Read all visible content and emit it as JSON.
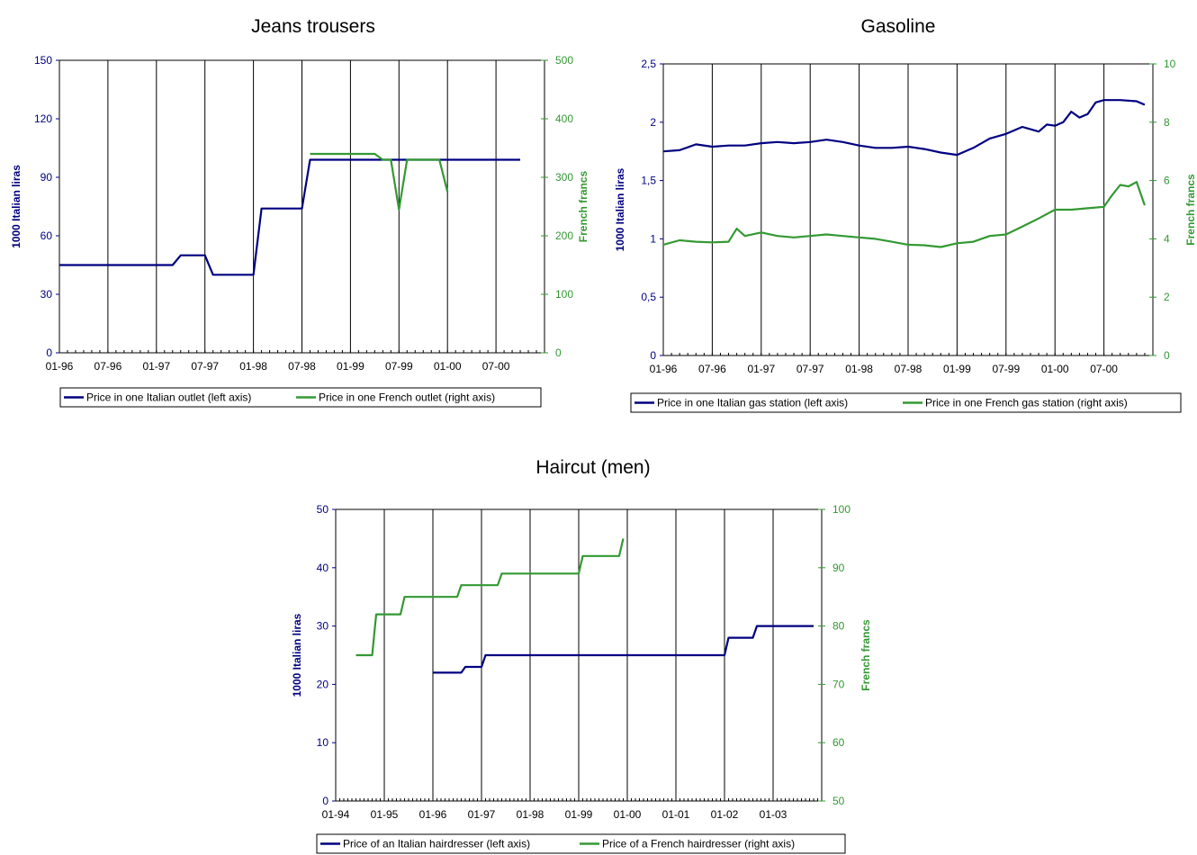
{
  "colors": {
    "italy": "#000080",
    "france": "#339933",
    "grid": "#000000"
  },
  "chart_data": [
    {
      "type": "line",
      "title": "Jeans trousers",
      "ylabel": "1000 Italian liras",
      "y2label": "French francs",
      "ylim": [
        0,
        150
      ],
      "y2lim": [
        0,
        500
      ],
      "yticks": [
        "0",
        "30",
        "60",
        "90",
        "120",
        "150"
      ],
      "y2ticks": [
        "0",
        "100",
        "200",
        "300",
        "400",
        "500"
      ],
      "xlim": [
        0,
        60
      ],
      "xticks": [
        "01-96",
        "07-96",
        "01-97",
        "07-97",
        "01-98",
        "07-98",
        "01-99",
        "07-99",
        "01-00",
        "07-00"
      ],
      "grid": true,
      "legend_position": "bottom",
      "series": [
        {
          "name": "Price in one Italian outlet (left axis)",
          "axis": "left",
          "color": "italy",
          "points": [
            [
              0,
              45
            ],
            [
              14,
              45
            ],
            [
              15,
              50
            ],
            [
              18,
              50
            ],
            [
              19,
              40
            ],
            [
              24,
              40
            ],
            [
              25,
              74
            ],
            [
              30,
              74
            ],
            [
              31,
              99
            ],
            [
              57,
              99
            ]
          ]
        },
        {
          "name": "Price in one French outlet (right axis)",
          "axis": "right",
          "color": "france",
          "points": [
            [
              31,
              340
            ],
            [
              39,
              340
            ],
            [
              40,
              330
            ],
            [
              41,
              330
            ],
            [
              42,
              245
            ],
            [
              43,
              330
            ],
            [
              47,
              330
            ],
            [
              48,
              275
            ]
          ]
        }
      ]
    },
    {
      "type": "line",
      "title": "Gasoline",
      "ylabel": "1000 Italian liras",
      "y2label": "French francs",
      "ylim": [
        0,
        2.5
      ],
      "y2lim": [
        0,
        10
      ],
      "yticks": [
        "0",
        "0,5",
        "1",
        "1,5",
        "2",
        "2,5"
      ],
      "y2ticks": [
        "0",
        "2",
        "4",
        "6",
        "8",
        "10"
      ],
      "xlim": [
        0,
        60
      ],
      "xticks": [
        "01-96",
        "07-96",
        "01-97",
        "07-97",
        "01-98",
        "07-98",
        "01-99",
        "07-99",
        "01-00",
        "07-00"
      ],
      "grid": true,
      "legend_position": "bottom",
      "series": [
        {
          "name": "Price in one Italian gas station (left axis)",
          "axis": "left",
          "color": "italy",
          "points": [
            [
              0,
              1.75
            ],
            [
              2,
              1.76
            ],
            [
              4,
              1.81
            ],
            [
              6,
              1.79
            ],
            [
              8,
              1.8
            ],
            [
              10,
              1.8
            ],
            [
              12,
              1.82
            ],
            [
              14,
              1.83
            ],
            [
              16,
              1.82
            ],
            [
              18,
              1.83
            ],
            [
              20,
              1.85
            ],
            [
              22,
              1.83
            ],
            [
              24,
              1.8
            ],
            [
              26,
              1.78
            ],
            [
              28,
              1.78
            ],
            [
              30,
              1.79
            ],
            [
              32,
              1.77
            ],
            [
              34,
              1.74
            ],
            [
              36,
              1.72
            ],
            [
              38,
              1.78
            ],
            [
              40,
              1.86
            ],
            [
              42,
              1.9
            ],
            [
              44,
              1.96
            ],
            [
              46,
              1.92
            ],
            [
              47,
              1.98
            ],
            [
              48,
              1.97
            ],
            [
              49,
              2.0
            ],
            [
              50,
              2.09
            ],
            [
              51,
              2.04
            ],
            [
              52,
              2.07
            ],
            [
              53,
              2.17
            ],
            [
              54,
              2.19
            ],
            [
              56,
              2.19
            ],
            [
              58,
              2.18
            ],
            [
              59,
              2.15
            ]
          ]
        },
        {
          "name": "Price in one French  gas station (right axis)",
          "axis": "right",
          "color": "france",
          "points": [
            [
              0,
              3.8
            ],
            [
              2,
              3.95
            ],
            [
              4,
              3.9
            ],
            [
              6,
              3.88
            ],
            [
              8,
              3.9
            ],
            [
              9,
              4.35
            ],
            [
              10,
              4.1
            ],
            [
              12,
              4.22
            ],
            [
              14,
              4.1
            ],
            [
              16,
              4.05
            ],
            [
              18,
              4.1
            ],
            [
              20,
              4.15
            ],
            [
              22,
              4.1
            ],
            [
              24,
              4.05
            ],
            [
              26,
              4.0
            ],
            [
              28,
              3.9
            ],
            [
              30,
              3.8
            ],
            [
              32,
              3.78
            ],
            [
              34,
              3.72
            ],
            [
              36,
              3.85
            ],
            [
              38,
              3.9
            ],
            [
              40,
              4.1
            ],
            [
              42,
              4.15
            ],
            [
              44,
              4.42
            ],
            [
              46,
              4.7
            ],
            [
              48,
              5.0
            ],
            [
              50,
              5.0
            ],
            [
              52,
              5.05
            ],
            [
              54,
              5.1
            ],
            [
              55,
              5.5
            ],
            [
              56,
              5.85
            ],
            [
              57,
              5.8
            ],
            [
              58,
              5.95
            ],
            [
              59,
              5.15
            ]
          ]
        }
      ]
    },
    {
      "type": "line",
      "title": "Haircut (men)",
      "ylabel": "1000 Italian liras",
      "y2label": "French francs",
      "ylim": [
        0,
        50
      ],
      "y2lim": [
        50,
        100
      ],
      "yticks": [
        "0",
        "10",
        "20",
        "30",
        "40",
        "50"
      ],
      "y2ticks": [
        "50",
        "60",
        "70",
        "80",
        "90",
        "100"
      ],
      "xlim": [
        0,
        120
      ],
      "xticks": [
        "01-94",
        "01-95",
        "01-96",
        "01-97",
        "01-98",
        "01-99",
        "01-00",
        "01-01",
        "01-02",
        "01-03"
      ],
      "grid": true,
      "legend_position": "bottom",
      "series": [
        {
          "name": "Price of an Italian hairdresser (left axis)",
          "axis": "left",
          "color": "italy",
          "points": [
            [
              24,
              22
            ],
            [
              31,
              22
            ],
            [
              32,
              23
            ],
            [
              36,
              23
            ],
            [
              37,
              25
            ],
            [
              96,
              25
            ],
            [
              97,
              28
            ],
            [
              103,
              28
            ],
            [
              104,
              30
            ],
            [
              118,
              30
            ]
          ]
        },
        {
          "name": "Price of a French hairdresser (right axis)",
          "axis": "right",
          "color": "france",
          "points": [
            [
              5,
              75
            ],
            [
              9,
              75
            ],
            [
              10,
              82
            ],
            [
              16,
              82
            ],
            [
              17,
              85
            ],
            [
              30,
              85
            ],
            [
              31,
              87
            ],
            [
              40,
              87
            ],
            [
              41,
              89
            ],
            [
              60,
              89
            ],
            [
              61,
              92
            ],
            [
              70,
              92
            ],
            [
              71,
              95
            ]
          ]
        }
      ]
    }
  ]
}
